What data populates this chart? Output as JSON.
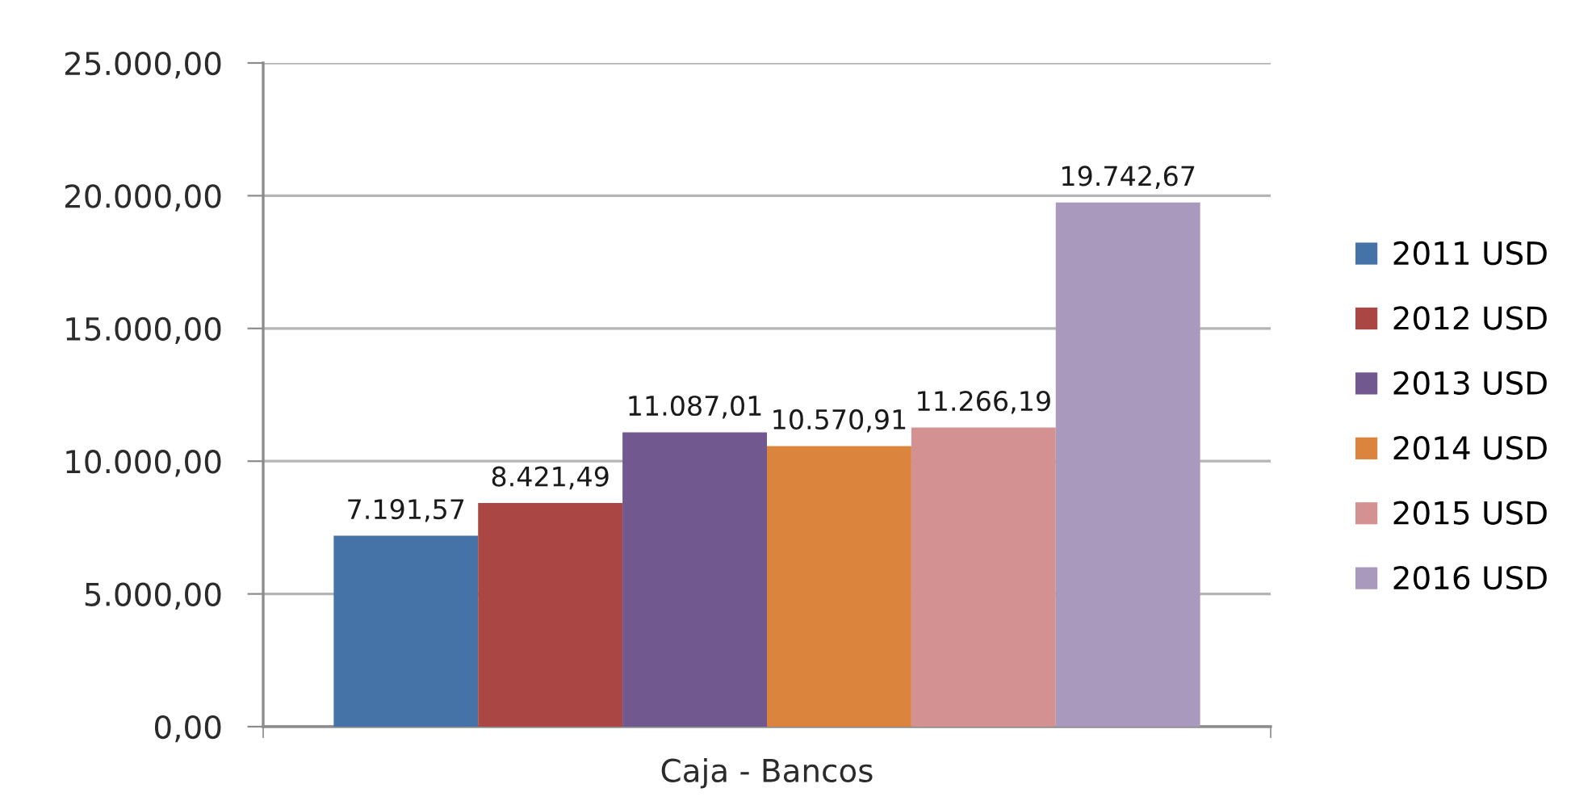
{
  "chart_data": {
    "type": "bar",
    "categories": [
      "Caja - Bancos"
    ],
    "series": [
      {
        "name": "2011 USD",
        "color": "#4572a7",
        "values": [
          7191.57
        ],
        "value_labels": [
          "7.191,57"
        ]
      },
      {
        "name": "2012 USD",
        "color": "#aa4643",
        "values": [
          8421.49
        ],
        "value_labels": [
          "8.421,49"
        ]
      },
      {
        "name": "2013 USD",
        "color": "#71588f",
        "values": [
          11087.01
        ],
        "value_labels": [
          "11.087,01"
        ]
      },
      {
        "name": "2014 USD",
        "color": "#db843d",
        "values": [
          10570.91
        ],
        "value_labels": [
          "10.570,91"
        ]
      },
      {
        "name": "2015 USD",
        "color": "#d39191",
        "values": [
          11266.19
        ],
        "value_labels": [
          "11.266,19"
        ]
      },
      {
        "name": "2016 USD",
        "color": "#a99abd",
        "values": [
          19742.67
        ],
        "value_labels": [
          "19.742,67"
        ]
      }
    ],
    "ylim": [
      0,
      25000
    ],
    "yticks": [
      {
        "value": 0,
        "label": "0,00"
      },
      {
        "value": 5000,
        "label": "5.000,00"
      },
      {
        "value": 10000,
        "label": "10.000,00"
      },
      {
        "value": 15000,
        "label": "15.000,00"
      },
      {
        "value": 20000,
        "label": "20.000,00"
      },
      {
        "value": 25000,
        "label": "25.000,00"
      }
    ],
    "grid": "y",
    "legend": "right"
  }
}
